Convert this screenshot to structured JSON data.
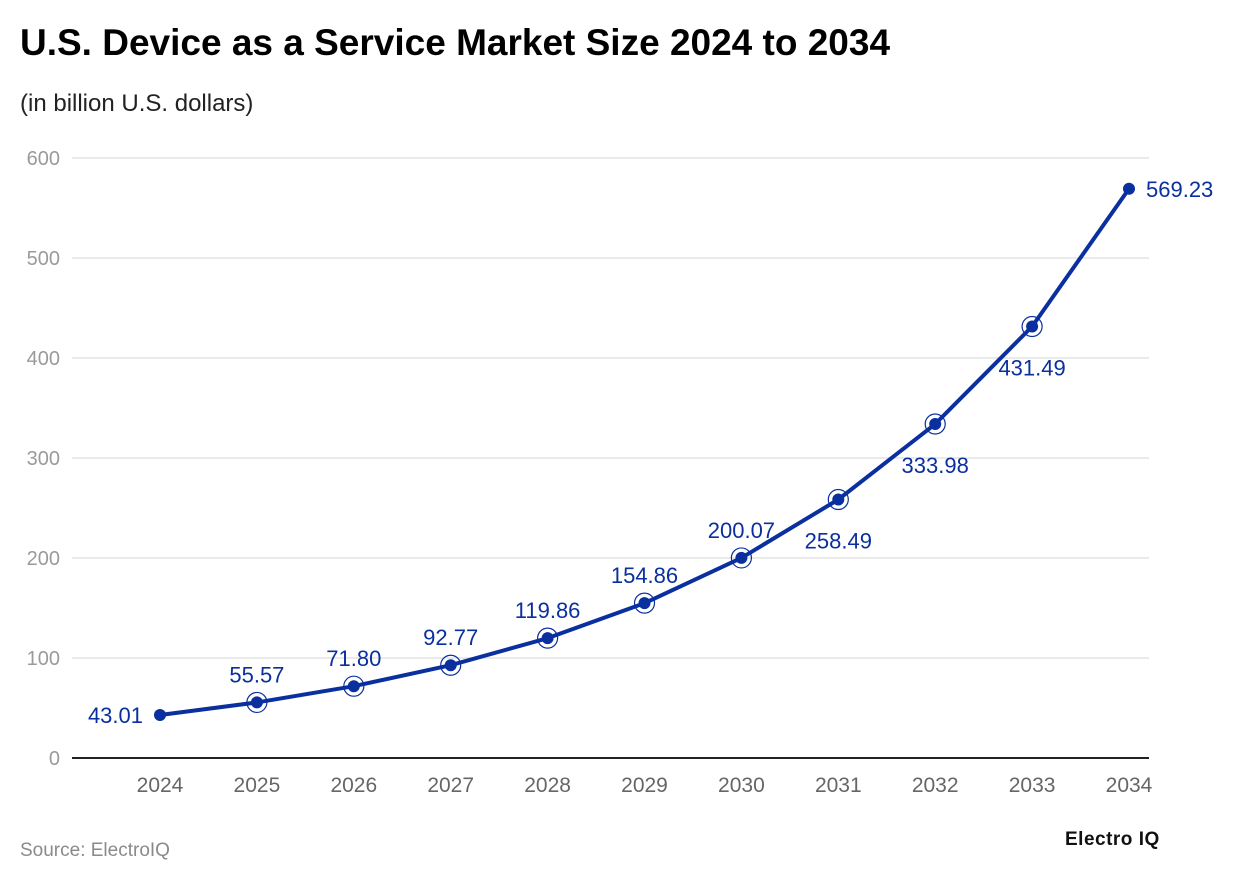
{
  "chart_data": {
    "type": "line",
    "title": "U.S. Device as a Service Market Size 2024 to 2034",
    "subtitle": "(in billion U.S. dollars)",
    "categories": [
      "2024",
      "2025",
      "2026",
      "2027",
      "2028",
      "2029",
      "2030",
      "2031",
      "2032",
      "2033",
      "2034"
    ],
    "values": [
      43.01,
      55.57,
      71.8,
      92.77,
      119.86,
      154.86,
      200.07,
      258.49,
      333.98,
      431.49,
      569.23
    ],
    "data_labels": [
      "43.01",
      "55.57",
      "71.80",
      "92.77",
      "119.86",
      "154.86",
      "200.07",
      "258.49",
      "333.98",
      "431.49",
      "569.23"
    ],
    "ylim": [
      0,
      600
    ],
    "yticks": [
      "0",
      "100",
      "200",
      "300",
      "400",
      "500",
      "600"
    ],
    "grid": true,
    "xlabel": "",
    "ylabel": "",
    "line_color": "#0a2f9e",
    "source": "Source: ElectroIQ",
    "logo": "Electro IQ"
  }
}
